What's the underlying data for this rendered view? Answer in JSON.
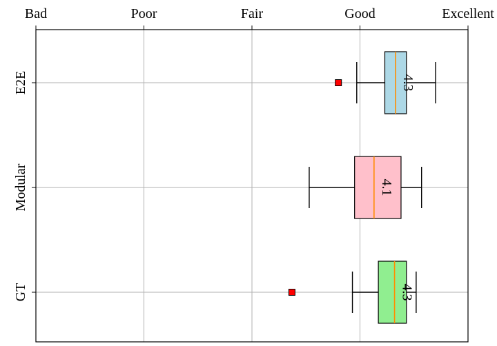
{
  "chart_data": {
    "type": "boxplot",
    "orientation": "horizontal",
    "x_ticks": [
      {
        "value": 1,
        "label": "Bad"
      },
      {
        "value": 2,
        "label": "Poor"
      },
      {
        "value": 3,
        "label": "Fair"
      },
      {
        "value": 4,
        "label": "Good"
      },
      {
        "value": 5,
        "label": "Excellent"
      }
    ],
    "xlim": [
      1,
      5
    ],
    "x_axis_position": "top",
    "grid": true,
    "series": [
      {
        "name": "E2E",
        "color": "#add8e6",
        "whisker_low": 3.97,
        "q1": 4.23,
        "median": 4.33,
        "q3": 4.43,
        "whisker_high": 4.7,
        "outliers": [
          3.8
        ],
        "label": "4.3"
      },
      {
        "name": "Modular",
        "color": "#ffc0cb",
        "whisker_low": 3.53,
        "q1": 3.95,
        "median": 4.13,
        "q3": 4.38,
        "whisker_high": 4.57,
        "outliers": [],
        "label": "4.1"
      },
      {
        "name": "GT",
        "color": "#90ee90",
        "whisker_low": 3.93,
        "q1": 4.17,
        "median": 4.32,
        "q3": 4.43,
        "whisker_high": 4.52,
        "outliers": [
          3.37
        ],
        "label": "4.3"
      }
    ],
    "median_color": "#ff8c00",
    "outlier_color": "#ff0000"
  }
}
